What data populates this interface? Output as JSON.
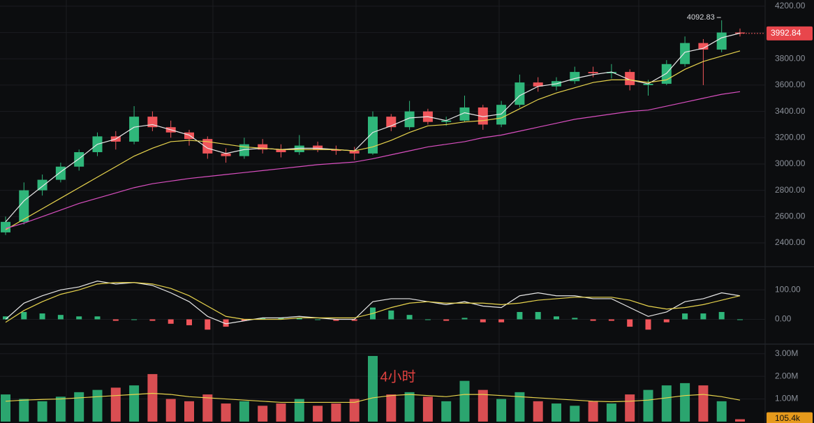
{
  "interval": "4小时",
  "chart_data": [
    {
      "type": "candlestick",
      "up_color": "#2fb67a",
      "down_color": "#f0555a",
      "open": [
        2480,
        2560,
        2800,
        2880,
        2980,
        3090,
        3210,
        3170,
        3360,
        3280,
        3240,
        3190,
        3080,
        3060,
        3150,
        3110,
        3090,
        3140,
        3110,
        3100,
        3080,
        3360,
        3280,
        3400,
        3320,
        3330,
        3430,
        3300,
        3450,
        3620,
        3590,
        3630,
        3700,
        3690,
        3700,
        3600,
        3610,
        3760,
        3920,
        3870,
        4000
      ],
      "high": [
        2600,
        2860,
        2920,
        3010,
        3110,
        3240,
        3250,
        3440,
        3400,
        3330,
        3260,
        3210,
        3120,
        3200,
        3190,
        3150,
        3220,
        3170,
        3140,
        3130,
        3400,
        3380,
        3480,
        3420,
        3360,
        3520,
        3450,
        3480,
        3680,
        3660,
        3660,
        3740,
        3740,
        3760,
        3720,
        3640,
        3790,
        3970,
        3950,
        4092.83,
        4030
      ],
      "low": [
        2460,
        2540,
        2760,
        2860,
        2950,
        3060,
        3110,
        3150,
        3250,
        3200,
        3140,
        3040,
        3010,
        3040,
        3080,
        3050,
        3070,
        3090,
        3070,
        3030,
        3070,
        3250,
        3260,
        3300,
        3290,
        3320,
        3260,
        3280,
        3430,
        3550,
        3560,
        3610,
        3660,
        3650,
        3560,
        3520,
        3600,
        3740,
        3600,
        3850,
        3970
      ],
      "close": [
        2560,
        2800,
        2880,
        2980,
        3090,
        3210,
        3170,
        3360,
        3280,
        3240,
        3190,
        3080,
        3060,
        3150,
        3110,
        3090,
        3140,
        3110,
        3100,
        3080,
        3360,
        3280,
        3400,
        3320,
        3330,
        3430,
        3300,
        3450,
        3620,
        3590,
        3630,
        3700,
        3690,
        3700,
        3600,
        3610,
        3760,
        3920,
        3870,
        4000,
        3992.84
      ],
      "series": [
        {
          "color": "#e8e8e8",
          "values": [
            2560,
            2720,
            2830,
            2940,
            3040,
            3150,
            3190,
            3280,
            3300,
            3260,
            3220,
            3120,
            3080,
            3110,
            3120,
            3110,
            3120,
            3120,
            3110,
            3100,
            3240,
            3290,
            3350,
            3360,
            3330,
            3390,
            3360,
            3380,
            3520,
            3590,
            3610,
            3650,
            3680,
            3700,
            3640,
            3610,
            3690,
            3850,
            3880,
            3960,
            3995
          ]
        },
        {
          "color": "#e8d44d",
          "values": [
            2500,
            2580,
            2660,
            2740,
            2820,
            2900,
            2980,
            3060,
            3120,
            3170,
            3180,
            3170,
            3150,
            3130,
            3120,
            3110,
            3110,
            3110,
            3110,
            3100,
            3130,
            3180,
            3240,
            3290,
            3300,
            3320,
            3330,
            3350,
            3420,
            3490,
            3540,
            3580,
            3620,
            3640,
            3640,
            3620,
            3640,
            3720,
            3780,
            3820,
            3860
          ]
        },
        {
          "color": "#d94fc0",
          "values": [
            2510,
            2550,
            2600,
            2650,
            2700,
            2740,
            2780,
            2820,
            2850,
            2870,
            2890,
            2905,
            2920,
            2935,
            2950,
            2965,
            2980,
            2995,
            3005,
            3015,
            3040,
            3070,
            3100,
            3130,
            3150,
            3170,
            3200,
            3220,
            3250,
            3280,
            3310,
            3340,
            3360,
            3380,
            3400,
            3410,
            3440,
            3470,
            3500,
            3530,
            3550
          ]
        }
      ],
      "high_label": 4092.83,
      "last_price": 3992.84,
      "ylim": [
        2230,
        4226
      ],
      "yticks": [
        {
          "value": 2400,
          "label": "2400.00"
        },
        {
          "value": 2600,
          "label": "2600.00"
        },
        {
          "value": 2800,
          "label": "2800.00"
        },
        {
          "value": 3000,
          "label": "3000.00"
        },
        {
          "value": 3200,
          "label": "3200.00"
        },
        {
          "value": 3400,
          "label": "3400.00"
        },
        {
          "value": 3600,
          "label": "3600.00"
        },
        {
          "value": 3800,
          "label": "3800.00"
        },
        {
          "value": 4000,
          "label": "4000.00"
        },
        {
          "value": 4200,
          "label": "4200.00"
        }
      ]
    },
    {
      "type": "macd",
      "up_color": "#2fb67a",
      "down_color": "#f0555a",
      "values": [
        10,
        25,
        20,
        15,
        10,
        10,
        -5,
        0,
        -5,
        -15,
        -20,
        -35,
        -25,
        -5,
        5,
        5,
        5,
        0,
        -5,
        -5,
        40,
        30,
        15,
        0,
        -5,
        5,
        -10,
        -10,
        25,
        25,
        10,
        5,
        -5,
        -5,
        -25,
        -35,
        -10,
        20,
        20,
        25,
        0
      ],
      "series": [
        {
          "color": "#e8e8e8",
          "values": [
            0,
            55,
            80,
            100,
            110,
            130,
            120,
            125,
            115,
            90,
            60,
            10,
            -15,
            -5,
            5,
            5,
            10,
            5,
            0,
            0,
            60,
            70,
            70,
            60,
            50,
            60,
            45,
            40,
            80,
            90,
            80,
            80,
            70,
            70,
            40,
            10,
            25,
            60,
            70,
            90,
            80
          ]
        },
        {
          "color": "#e8d44d",
          "values": [
            -10,
            30,
            60,
            85,
            100,
            120,
            125,
            125,
            120,
            105,
            80,
            45,
            10,
            0,
            0,
            0,
            5,
            5,
            5,
            5,
            20,
            40,
            55,
            60,
            55,
            55,
            55,
            50,
            55,
            65,
            70,
            75,
            75,
            75,
            65,
            45,
            35,
            40,
            50,
            65,
            80
          ]
        }
      ],
      "ylim": [
        -77,
        167
      ],
      "yticks": [
        {
          "value": 0,
          "label": "0.00"
        },
        {
          "value": 100,
          "label": "100.00"
        }
      ]
    },
    {
      "type": "volume",
      "up_color": "#2fb67a",
      "down_color": "#f0555a",
      "values": [
        1200000,
        1000000,
        900000,
        1100000,
        1300000,
        1400000,
        1500000,
        1600000,
        2100000,
        1000000,
        900000,
        1200000,
        800000,
        900000,
        700000,
        800000,
        1000000,
        700000,
        800000,
        1000000,
        2900000,
        1200000,
        1300000,
        1100000,
        900000,
        1800000,
        1400000,
        1000000,
        1300000,
        900000,
        800000,
        700000,
        900000,
        800000,
        1200000,
        1400000,
        1600000,
        1700000,
        1600000,
        900000,
        105400
      ],
      "series": [
        {
          "color": "#e8d44d",
          "values": [
            900000,
            950000,
            980000,
            1000000,
            1050000,
            1100000,
            1150000,
            1200000,
            1250000,
            1200000,
            1100000,
            1050000,
            1000000,
            950000,
            900000,
            850000,
            850000,
            850000,
            850000,
            850000,
            1050000,
            1150000,
            1200000,
            1150000,
            1100000,
            1200000,
            1200000,
            1150000,
            1100000,
            1050000,
            1000000,
            950000,
            900000,
            880000,
            900000,
            950000,
            1050000,
            1150000,
            1200000,
            1100000,
            950000
          ]
        }
      ],
      "last_label": {
        "value": 105400,
        "label": "105.4k"
      },
      "ylim": [
        0,
        3300000
      ],
      "yticks": [
        {
          "value": 1000000,
          "label": "1.00M"
        },
        {
          "value": 2000000,
          "label": "2.00M"
        },
        {
          "value": 3000000,
          "label": "3.00M"
        }
      ]
    }
  ]
}
